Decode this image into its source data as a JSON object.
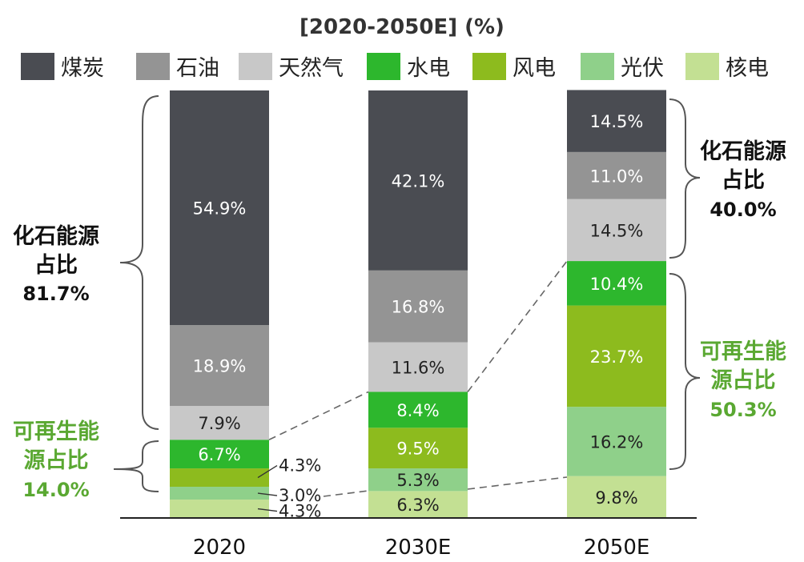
{
  "chart_data": {
    "type": "bar",
    "stacked": true,
    "title": "[2020-2050E] (%)",
    "categories": [
      "2020",
      "2030E",
      "2050E"
    ],
    "series": [
      {
        "name": "煤炭",
        "color": "#4a4c52",
        "values": [
          54.9,
          42.1,
          14.5
        ],
        "labels": [
          "54.9%",
          "42.1%",
          "14.5%"
        ]
      },
      {
        "name": "石油",
        "color": "#949494",
        "values": [
          18.9,
          16.8,
          11.0
        ],
        "labels": [
          "18.9%",
          "16.8%",
          "11.0%"
        ]
      },
      {
        "name": "天然气",
        "color": "#c8c8c8",
        "values": [
          7.9,
          11.6,
          14.5
        ],
        "labels": [
          "7.9%",
          "11.6%",
          "14.5%"
        ]
      },
      {
        "name": "水电",
        "color": "#2db72d",
        "values": [
          6.7,
          8.4,
          10.4
        ],
        "labels": [
          "6.7%",
          "8.4%",
          "10.4%"
        ]
      },
      {
        "name": "风电",
        "color": "#8dbb1e",
        "values": [
          4.3,
          9.5,
          23.7
        ],
        "labels": [
          "4.3%",
          "9.5%",
          "23.7%"
        ]
      },
      {
        "name": "光伏",
        "color": "#8fd08a",
        "values": [
          3.0,
          5.3,
          16.2
        ],
        "labels": [
          "3.0%",
          "5.3%",
          "16.2%"
        ]
      },
      {
        "name": "核电",
        "color": "#c3e093",
        "values": [
          4.3,
          6.3,
          9.8
        ],
        "labels": [
          "4.3%",
          "6.3%",
          "9.8%"
        ]
      }
    ],
    "legend_position": "top",
    "grid": false
  },
  "annotations": {
    "fossil_2020": {
      "line1": "化石能源",
      "line2": "占比",
      "value": "81.7%"
    },
    "renew_2020": {
      "line1": "可再生能",
      "line2": "源占比",
      "value": "14.0%"
    },
    "fossil_2050": {
      "line1": "化石能源",
      "line2": "占比",
      "value": "40.0%"
    },
    "renew_2050": {
      "line1": "可再生能",
      "line2": "源占比",
      "value": "50.3%"
    }
  }
}
